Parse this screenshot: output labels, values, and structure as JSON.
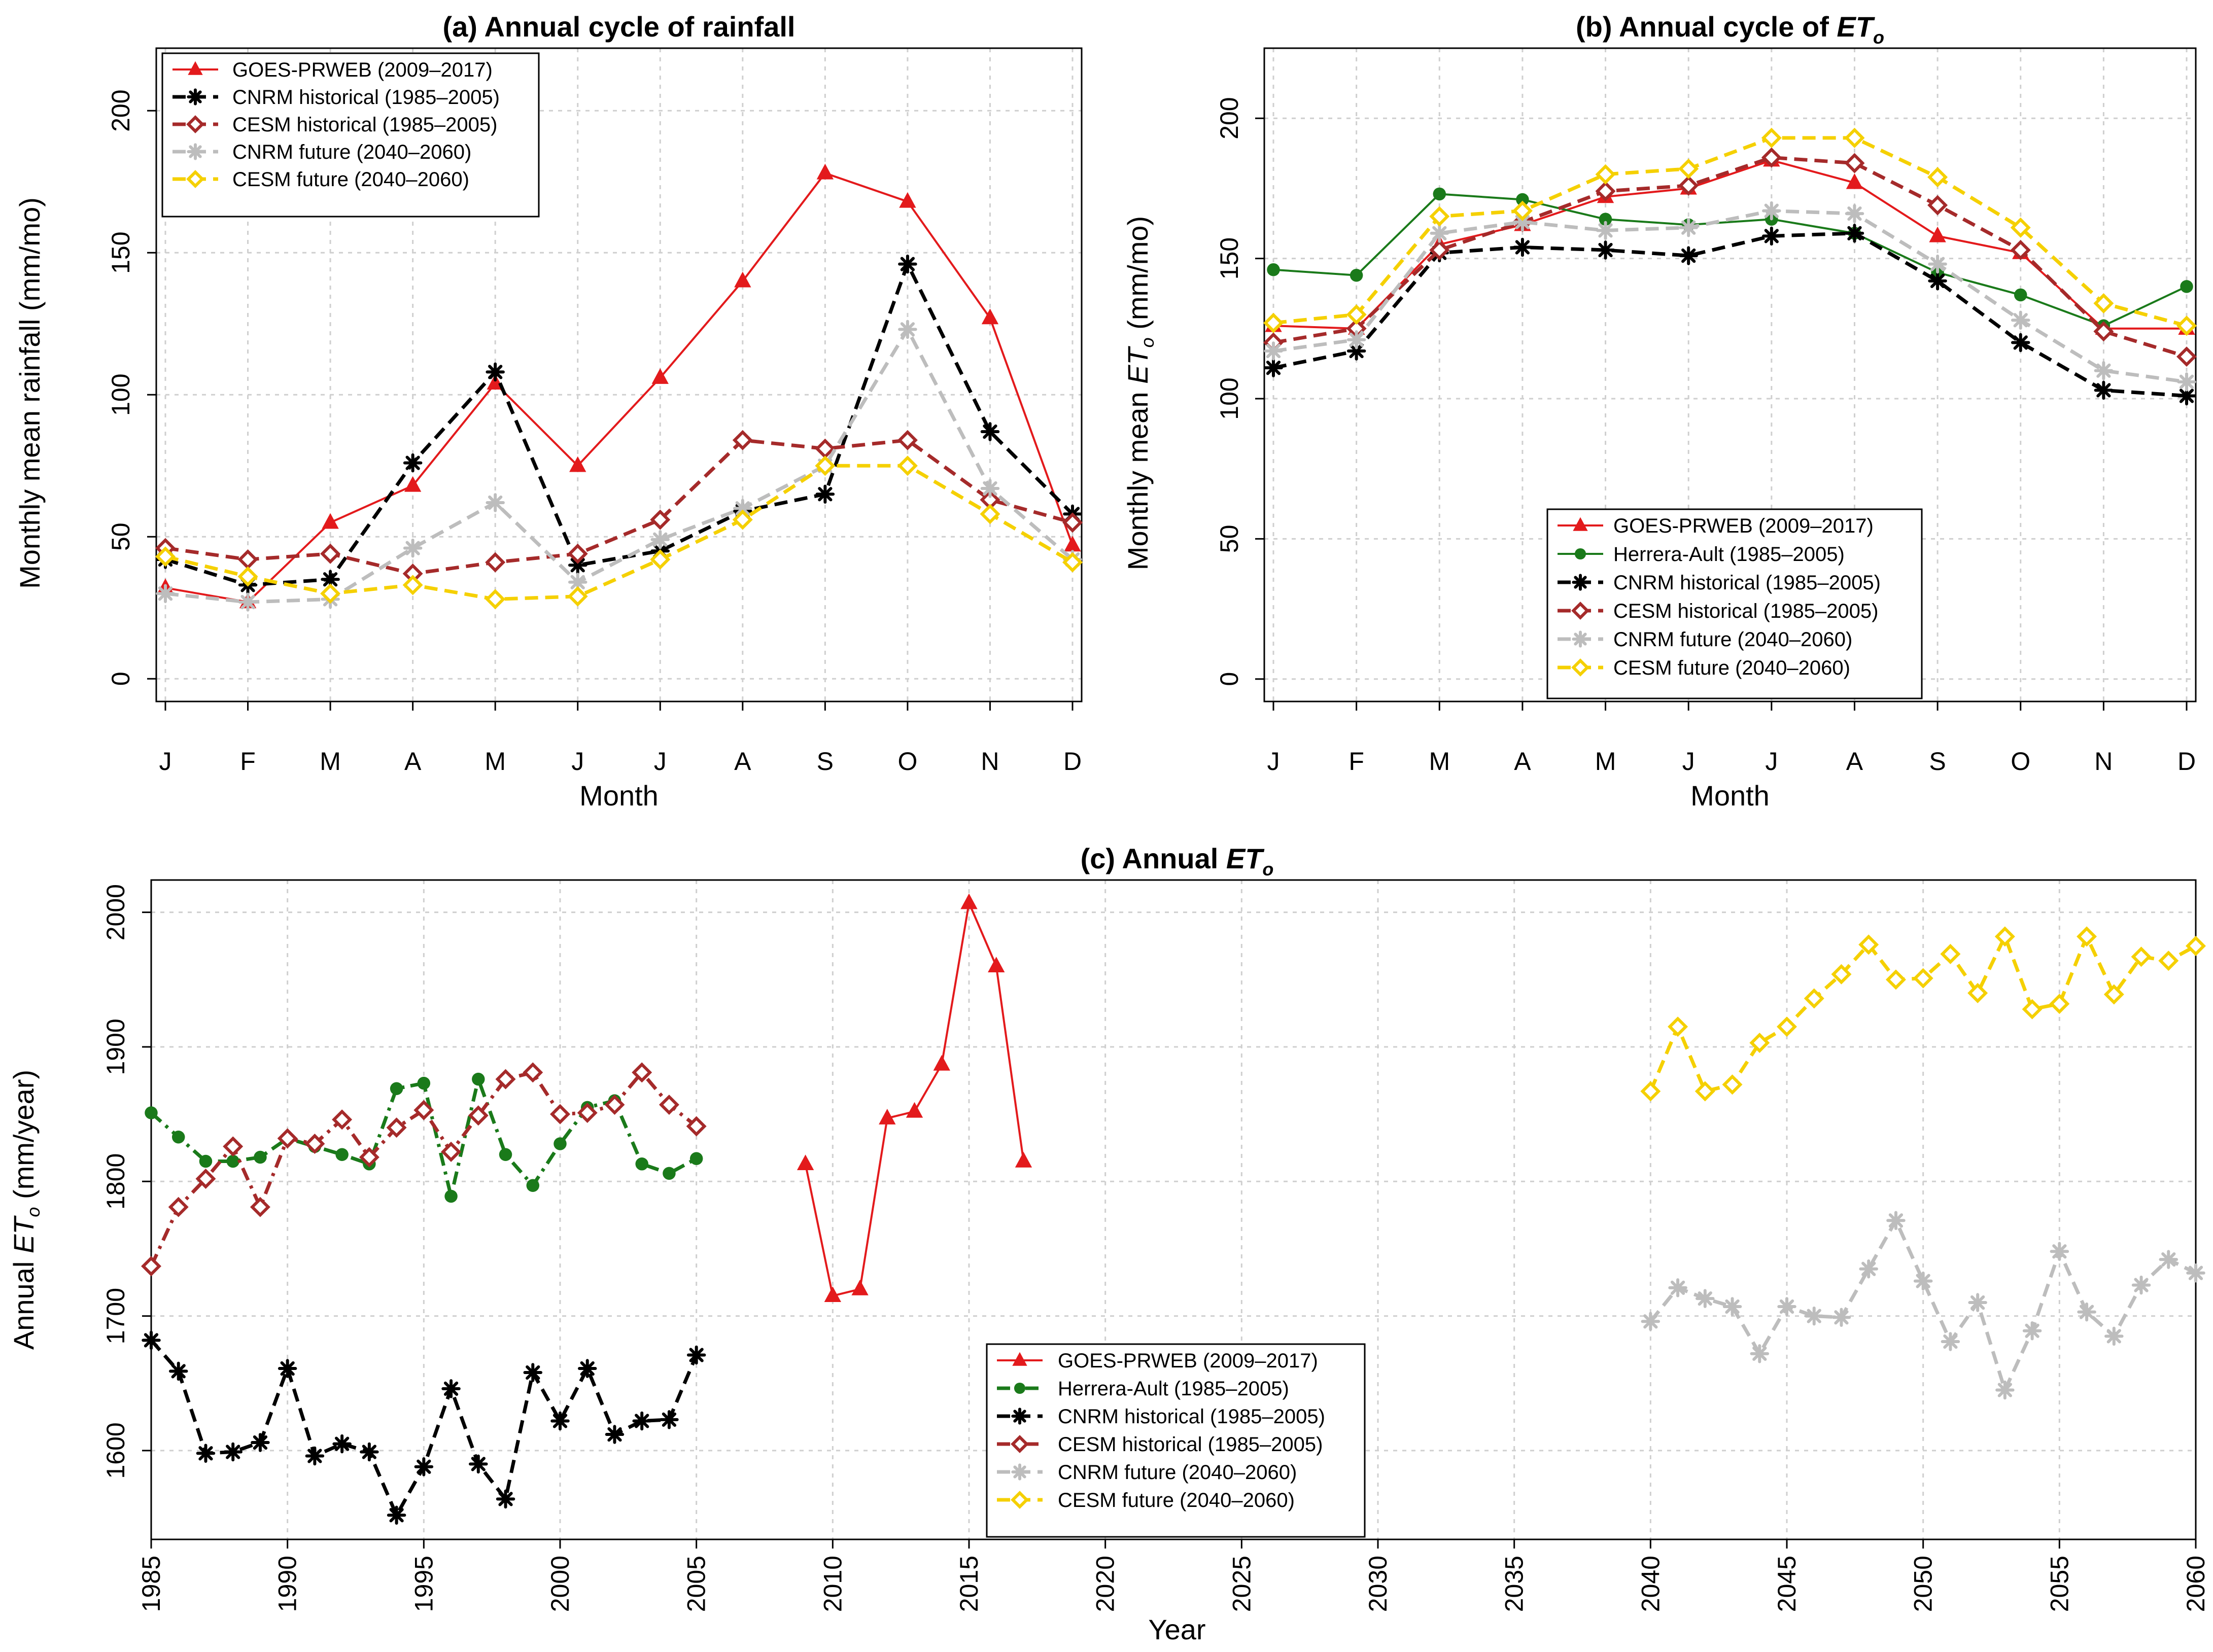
{
  "colors": {
    "goes": "#e31a1c",
    "herrera": "#1a7a1a",
    "cnrm_hist": "#000000",
    "cesm_hist": "#a52a2a",
    "cnrm_fut": "#bdbdbd",
    "cesm_fut": "#f5d000"
  },
  "chart_data": [
    {
      "id": "a",
      "type": "line",
      "title": "(a) Annual cycle of rainfall",
      "xlabel": "Month",
      "ylabel": "Monthly mean rainfall (mm/mo)",
      "categories": [
        "J",
        "F",
        "M",
        "A",
        "M",
        "J",
        "J",
        "A",
        "S",
        "O",
        "N",
        "D"
      ],
      "ylim": [
        -8,
        222
      ],
      "yticks": [
        0,
        50,
        100,
        150,
        200
      ],
      "yticklabels": [
        "0",
        "50",
        "100",
        "150",
        "200"
      ],
      "grid": true,
      "legend_position": "top-left",
      "series": [
        {
          "key": "goes",
          "name": "GOES-PRWEB (2009–2017)",
          "marker": "triangle",
          "style": "solid",
          "values": [
            32,
            27,
            55,
            68,
            104,
            75,
            106,
            140,
            178,
            168,
            127,
            47
          ]
        },
        {
          "key": "cnrm_hist",
          "name": "CNRM historical (1985–2005)",
          "marker": "asterisk",
          "style": "dashed",
          "values": [
            42,
            33,
            35,
            76,
            108,
            40,
            45,
            59,
            65,
            146,
            87,
            58
          ]
        },
        {
          "key": "cesm_hist",
          "name": "CESM historical (1985–2005)",
          "marker": "diamond",
          "style": "dashed",
          "values": [
            46,
            42,
            44,
            37,
            41,
            44,
            56,
            84,
            81,
            84,
            63,
            55
          ]
        },
        {
          "key": "cnrm_fut",
          "name": "CNRM future (2040–2060)",
          "marker": "asterisk",
          "style": "dashed",
          "values": [
            30,
            27,
            28,
            46,
            62,
            34,
            49,
            60,
            75,
            123,
            67,
            42
          ]
        },
        {
          "key": "cesm_fut",
          "name": "CESM future (2040–2060)",
          "marker": "diamond",
          "style": "dashed",
          "values": [
            43,
            36,
            30,
            33,
            28,
            29,
            42,
            56,
            75,
            75,
            58,
            41
          ]
        }
      ]
    },
    {
      "id": "b",
      "type": "line",
      "title": "(b) Annual cycle of ",
      "title_var": "ET",
      "title_sub": "o",
      "xlabel": "Month",
      "ylabel": "Monthly mean ",
      "ylabel_var": "ET",
      "ylabel_sub": "o",
      "ylabel_unit": " (mm/mo)",
      "categories": [
        "J",
        "F",
        "M",
        "A",
        "M",
        "J",
        "J",
        "A",
        "S",
        "O",
        "N",
        "D"
      ],
      "ylim": [
        -8,
        225
      ],
      "yticks": [
        0,
        50,
        100,
        150,
        200
      ],
      "yticklabels": [
        "0",
        "50",
        "100",
        "150",
        "200"
      ],
      "grid": true,
      "legend_position": "bottom-center",
      "series": [
        {
          "key": "goes",
          "name": "GOES-PRWEB (2009–2017)",
          "marker": "triangle",
          "style": "solid",
          "values": [
            126,
            125,
            155,
            162,
            172,
            175,
            185,
            177,
            158,
            152,
            125,
            125
          ]
        },
        {
          "key": "herrera",
          "name": "Herrera-Ault (1985–2005)",
          "marker": "dot",
          "style": "solid",
          "values": [
            146,
            144,
            173,
            171,
            164,
            162,
            164,
            159,
            145,
            137,
            126,
            140
          ]
        },
        {
          "key": "cnrm_hist",
          "name": "CNRM historical (1985–2005)",
          "marker": "asterisk",
          "style": "dashed",
          "values": [
            111,
            117,
            152,
            154,
            153,
            151,
            158,
            159,
            142,
            120,
            103,
            101
          ]
        },
        {
          "key": "cesm_hist",
          "name": "CESM historical (1985–2005)",
          "marker": "diamond",
          "style": "dashed",
          "values": [
            120,
            125,
            153,
            163,
            174,
            176,
            186,
            184,
            169,
            153,
            124,
            115
          ]
        },
        {
          "key": "cnrm_fut",
          "name": "CNRM future (2040–2060)",
          "marker": "asterisk",
          "style": "dashed",
          "values": [
            117,
            121,
            159,
            163,
            160,
            161,
            167,
            166,
            148,
            128,
            110,
            106
          ]
        },
        {
          "key": "cesm_fut",
          "name": "CESM future (2040–2060)",
          "marker": "diamond",
          "style": "dashed",
          "values": [
            127,
            130,
            165,
            167,
            180,
            182,
            193,
            193,
            179,
            161,
            134,
            126
          ]
        }
      ]
    },
    {
      "id": "c",
      "type": "line",
      "title": "(c) Annual ",
      "title_var": "ET",
      "title_sub": "o",
      "xlabel": "Year",
      "ylabel": "Annual ",
      "ylabel_var": "ET",
      "ylabel_sub": "o",
      "ylabel_unit": " (mm/year)",
      "xlim": [
        1985,
        2060
      ],
      "ylim": [
        1534,
        2024
      ],
      "xticks": [
        1985,
        1990,
        1995,
        2000,
        2005,
        2010,
        2015,
        2020,
        2025,
        2030,
        2035,
        2040,
        2045,
        2050,
        2055,
        2060
      ],
      "xticklabels": [
        "1985",
        "1990",
        "1995",
        "2000",
        "2005",
        "2010",
        "2015",
        "2020",
        "2025",
        "2030",
        "2035",
        "2040",
        "2045",
        "2050",
        "2055",
        "2060"
      ],
      "yticks": [
        1600,
        1700,
        1800,
        1900,
        2000
      ],
      "yticklabels": [
        "1600",
        "1700",
        "1800",
        "1900",
        "2000"
      ],
      "grid": true,
      "legend_position": "bottom-center",
      "series": [
        {
          "key": "goes",
          "name": "GOES-PRWEB (2009–2017)",
          "marker": "triangle",
          "style": "solid",
          "x": [
            2009,
            2010,
            2011,
            2012,
            2013,
            2014,
            2015,
            2016,
            2017
          ],
          "values": [
            1813,
            1715,
            1720,
            1847,
            1852,
            1887,
            2007,
            1960,
            1815
          ]
        },
        {
          "key": "herrera",
          "name": "Herrera-Ault (1985–2005)",
          "marker": "dot",
          "style": "dashdot",
          "x": [
            1985,
            1986,
            1987,
            1988,
            1989,
            1990,
            1991,
            1992,
            1993,
            1994,
            1995,
            1996,
            1997,
            1998,
            1999,
            2000,
            2001,
            2002,
            2003,
            2004,
            2005
          ],
          "values": [
            1851,
            1833,
            1815,
            1815,
            1818,
            1832,
            1826,
            1820,
            1813,
            1869,
            1873,
            1789,
            1876,
            1820,
            1797,
            1828,
            1855,
            1860,
            1813,
            1806,
            1817
          ]
        },
        {
          "key": "cnrm_hist",
          "name": "CNRM historical (1985–2005)",
          "marker": "asterisk",
          "style": "dashed",
          "x": [
            1985,
            1986,
            1987,
            1988,
            1989,
            1990,
            1991,
            1992,
            1993,
            1994,
            1995,
            1996,
            1997,
            1998,
            1999,
            2000,
            2001,
            2002,
            2003,
            2004,
            2005
          ],
          "values": [
            1682,
            1659,
            1598,
            1599,
            1606,
            1661,
            1596,
            1605,
            1599,
            1552,
            1588,
            1646,
            1590,
            1564,
            1658,
            1622,
            1661,
            1612,
            1622,
            1623,
            1671
          ]
        },
        {
          "key": "cesm_hist",
          "name": "CESM historical (1985–2005)",
          "marker": "diamond",
          "style": "dashdot",
          "x": [
            1985,
            1986,
            1987,
            1988,
            1989,
            1990,
            1991,
            1992,
            1993,
            1994,
            1995,
            1996,
            1997,
            1998,
            1999,
            2000,
            2001,
            2002,
            2003,
            2004,
            2005
          ],
          "values": [
            1737,
            1781,
            1802,
            1826,
            1781,
            1832,
            1828,
            1846,
            1818,
            1840,
            1853,
            1822,
            1849,
            1876,
            1881,
            1850,
            1851,
            1857,
            1881,
            1857,
            1841
          ]
        },
        {
          "key": "cnrm_fut",
          "name": "CNRM future (2040–2060)",
          "marker": "asterisk",
          "style": "dashed",
          "x": [
            2040,
            2041,
            2042,
            2043,
            2044,
            2045,
            2046,
            2047,
            2048,
            2049,
            2050,
            2051,
            2052,
            2053,
            2054,
            2055,
            2056,
            2057,
            2058,
            2059,
            2060
          ],
          "values": [
            1696,
            1721,
            1713,
            1707,
            1672,
            1707,
            1700,
            1699,
            1735,
            1771,
            1726,
            1681,
            1710,
            1645,
            1689,
            1748,
            1703,
            1685,
            1723,
            1742,
            1732
          ]
        },
        {
          "key": "cesm_fut",
          "name": "CESM future (2040–2060)",
          "marker": "diamond",
          "style": "dashed",
          "x": [
            2040,
            2041,
            2042,
            2043,
            2044,
            2045,
            2046,
            2047,
            2048,
            2049,
            2050,
            2051,
            2052,
            2053,
            2054,
            2055,
            2056,
            2057,
            2058,
            2059,
            2060
          ],
          "values": [
            1867,
            1915,
            1867,
            1872,
            1903,
            1915,
            1936,
            1954,
            1976,
            1950,
            1951,
            1969,
            1940,
            1982,
            1928,
            1932,
            1982,
            1939,
            1967,
            1964,
            1975
          ]
        }
      ]
    }
  ]
}
